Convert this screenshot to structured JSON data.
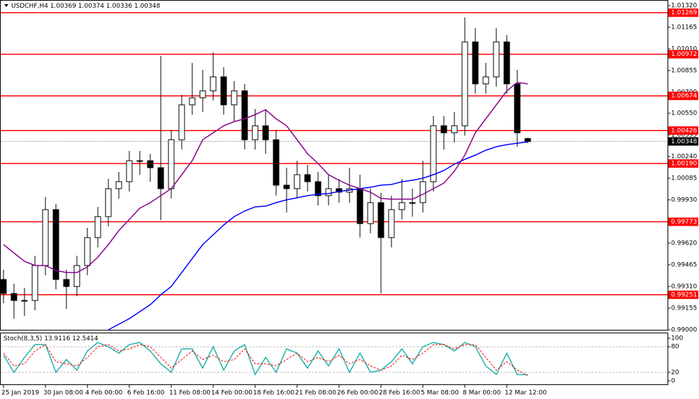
{
  "chart_data": [
    {
      "type": "candlestick",
      "title": "USDCHF,H4",
      "categories": [
        "25 Jan 2019",
        null,
        null,
        null,
        "30 Jan 08:00",
        null,
        null,
        null,
        "4 Feb 00:00",
        null,
        null,
        null,
        "6 Feb 16:00",
        null,
        null,
        null,
        "11 Feb 08:00",
        null,
        null,
        null,
        "14 Feb 00:00",
        null,
        null,
        null,
        "18 Feb 16:00",
        null,
        null,
        null,
        "21 Feb 08:00",
        null,
        null,
        null,
        "26 Feb 00:00",
        null,
        null,
        null,
        "28 Feb 16:00",
        null,
        null,
        null,
        "5 Mar 08:00",
        null,
        null,
        null,
        "8 Mar 00:00",
        null,
        null,
        null,
        "12 Mar 12:00",
        null,
        null
      ],
      "open": [
        0.9936,
        0.9926,
        0.9921,
        0.9921,
        0.9946,
        0.9986,
        0.9936,
        0.9931,
        0.9946,
        0.9966,
        0.9981,
        1.0001,
        1.0006,
        1.0021,
        1.0021,
        1.0016,
        1.0001,
        1.0036,
        1.0061,
        1.0066,
        1.0071,
        1.0081,
        1.0061,
        1.0071,
        1.0036,
        1.0046,
        1.0036,
        1.00035,
        1.0001,
        1.0011,
        1.0006,
        0.9996,
        1.0001,
        0.99985,
        1.0001,
        0.9976,
        0.9991,
        0.9966,
        0.9986,
        0.9991,
        0.9991,
        1.0006,
        1.0046,
        1.0041,
        1.0046,
        1.0106,
        1.0076,
        1.0081,
        1.0106,
        1.0076,
        1.00369
      ],
      "high": [
        0.9943,
        0.9933,
        0.993,
        0.9953,
        0.9995,
        0.999,
        0.9943,
        0.9953,
        0.9973,
        0.9988,
        1.0008,
        1.0013,
        1.0028,
        1.0028,
        1.0026,
        1.0096,
        1.0043,
        1.0068,
        1.0091,
        1.0086,
        1.00985,
        1.0088,
        1.0078,
        1.0076,
        1.0058,
        1.0058,
        1.0043,
        1.0016,
        1.0021,
        1.0018,
        1.0013,
        1.0011,
        1.0008,
        1.0016,
        1.0011,
        1.0001,
        0.9998,
        0.9996,
        1.0008,
        1.0001,
        1.0021,
        1.0053,
        1.0053,
        1.0056,
        1.01235,
        1.0116,
        1.0091,
        1.0116,
        1.0111,
        1.0086,
        1.00374
      ],
      "low": [
        0.9919,
        0.9908,
        0.991,
        0.9914,
        0.9939,
        0.9929,
        0.9915,
        0.9924,
        0.9939,
        0.9959,
        0.9974,
        0.9994,
        0.9999,
        1.0011,
        1.0006,
        0.99785,
        0.9994,
        1.0029,
        1.0054,
        1.0056,
        1.0064,
        1.0054,
        1.0049,
        1.0029,
        1.0029,
        1.0026,
        0.9996,
        0.9984,
        0.9994,
        0.9999,
        0.9989,
        0.9989,
        0.9991,
        0.9991,
        0.9966,
        0.9969,
        0.9926,
        0.9959,
        0.9979,
        0.9981,
        0.9984,
        0.9999,
        1.0029,
        1.0034,
        1.0039,
        1.0069,
        1.0069,
        1.0074,
        1.0069,
        1.0031,
        1.00336
      ],
      "close": [
        0.9926,
        0.9921,
        0.9921,
        0.9946,
        0.9986,
        0.9936,
        0.9931,
        0.9946,
        0.9966,
        0.9981,
        1.0001,
        1.0006,
        1.0021,
        1.0021,
        1.0016,
        1.0001,
        1.0036,
        1.0061,
        1.0066,
        1.0071,
        1.0081,
        1.0061,
        1.0071,
        1.0036,
        1.0046,
        1.0036,
        1.00035,
        1.0001,
        1.0011,
        1.0006,
        0.9996,
        1.0001,
        0.99985,
        1.0001,
        0.9976,
        0.9991,
        0.9966,
        0.9986,
        0.9991,
        0.9991,
        1.0006,
        1.0046,
        1.0041,
        1.0046,
        1.0106,
        1.0076,
        1.0081,
        1.0106,
        1.0076,
        1.0041,
        1.00348
      ],
      "series": [
        {
          "color": "#0000ff",
          "values": [
            null,
            null,
            null,
            null,
            null,
            null,
            null,
            null,
            null,
            null,
            0.99,
            0.9904,
            0.9908,
            0.9913,
            0.9918,
            0.9925,
            0.9931,
            0.9941,
            0.9951,
            0.9961,
            0.9968,
            0.9975,
            0.9981,
            0.9985,
            0.9988,
            0.99885,
            0.9991,
            0.9993,
            0.99945,
            0.9996,
            0.9997,
            0.99975,
            0.9999,
            1.0,
            1.0001,
            1.0002,
            1.00035,
            1.0004,
            1.0006,
            1.0007,
            1.00085,
            1.0011,
            1.0014,
            1.00185,
            1.0022,
            1.0025,
            1.00285,
            1.0031,
            1.00325,
            1.00335,
            1.00345
          ]
        },
        {
          "color": "#8b008b",
          "values": [
            0.9961,
            0.9955,
            0.9949,
            0.9946,
            0.9946,
            0.99425,
            0.9941,
            0.9941,
            0.9945,
            0.9952,
            0.9961,
            0.9971,
            0.9979,
            0.9987,
            0.9991,
            0.9996,
            1.0001,
            1.0011,
            1.0021,
            1.0036,
            1.0041,
            1.0046,
            1.0049,
            1.0051,
            1.0054,
            1.00575,
            1.0051,
            1.0046,
            1.0036,
            1.0026,
            1.0019,
            1.0011,
            1.0007,
            1.00035,
            1.0001,
            0.99985,
            0.9994,
            0.99935,
            0.99935,
            0.99935,
            0.9997,
            1.0001,
            1.0005,
            1.00135,
            1.0025,
            1.0041,
            1.0051,
            1.0061,
            1.0071,
            1.0077,
            1.0076
          ]
        }
      ],
      "levels": [
        1.01269,
        1.00972,
        1.00674,
        1.00426,
        {
          "value": 1.0019,
          "label": "1.00190"
        },
        0.99773,
        0.99251
      ],
      "level_color": "#ff0000",
      "ylim": [
        0.99,
        1.0135
      ],
      "yticks": [
        {
          "value": 0.99,
          "label": "0.99000"
        },
        {
          "value": 0.99155,
          "label": "0.99155"
        },
        {
          "value": 0.9931,
          "label": "0.99310"
        },
        {
          "value": 0.99465,
          "label": "0.99465"
        },
        {
          "value": 0.9962,
          "label": "0.99620"
        },
        {
          "value": 0.99775,
          "label": "0.99775"
        },
        {
          "value": 0.9993,
          "label": "0.99930"
        },
        {
          "value": 1.00085,
          "label": "1.00085"
        },
        {
          "value": 1.0024,
          "label": "1.00240"
        },
        {
          "value": 1.00395,
          "label": "1.00395"
        },
        {
          "value": 1.0055,
          "label": "1.00550"
        },
        {
          "value": 1.007,
          "label": "1.00700"
        },
        {
          "value": 1.00855,
          "label": "1.00855"
        },
        {
          "value": 1.0101,
          "label": "1.01010"
        },
        {
          "value": 1.01165,
          "label": "1.01165"
        },
        {
          "value": 1.0132,
          "label": "1.01320"
        }
      ]
    },
    {
      "type": "line",
      "title": "Stoch(8,3,5)",
      "series": [
        {
          "color": "#20b2aa",
          "values": [
            60,
            20,
            55,
            85,
            85,
            20,
            50,
            25,
            70,
            90,
            80,
            65,
            85,
            90,
            70,
            40,
            20,
            75,
            75,
            30,
            80,
            25,
            70,
            85,
            15,
            55,
            20,
            75,
            65,
            30,
            70,
            35,
            75,
            20,
            65,
            20,
            25,
            45,
            75,
            40,
            80,
            90,
            85,
            70,
            90,
            80,
            35,
            15,
            65,
            15,
            13.9116
          ]
        },
        {
          "color": "#ff0000",
          "dashed": true,
          "values": [
            65,
            35,
            40,
            70,
            85,
            45,
            40,
            35,
            55,
            80,
            85,
            70,
            75,
            85,
            80,
            55,
            30,
            50,
            70,
            50,
            60,
            45,
            50,
            75,
            40,
            40,
            35,
            50,
            65,
            45,
            55,
            45,
            60,
            40,
            50,
            35,
            25,
            35,
            60,
            50,
            65,
            85,
            85,
            75,
            85,
            85,
            55,
            25,
            45,
            25,
            12.5414
          ]
        }
      ],
      "levels": [
        20,
        80
      ],
      "ylim": [
        0,
        100
      ],
      "yticks": [
        0,
        20,
        80,
        100
      ]
    }
  ]
}
